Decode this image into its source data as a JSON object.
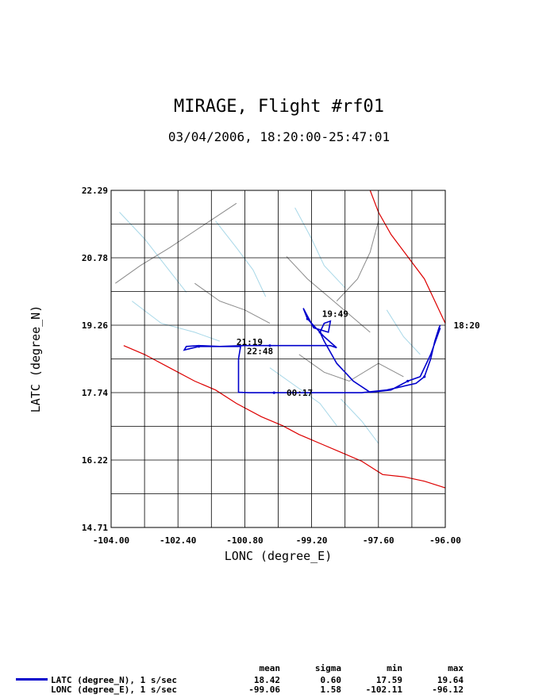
{
  "title": "MIRAGE, Flight #rf01",
  "subtitle": "03/04/2006, 18:20:00-25:47:01",
  "colors": {
    "track": "#0000cc",
    "coast": "#dd0000",
    "rivers": "#a8d8e8",
    "borders": "#8a8a8a",
    "grid": "#000000"
  },
  "chart_data": {
    "type": "line",
    "xlabel": "LONC (degree_E)",
    "ylabel": "LATC (degree_N)",
    "xlim": [
      -104.0,
      -96.0
    ],
    "ylim": [
      14.71,
      22.29
    ],
    "x_ticks": [
      "-104.00",
      "-102.40",
      "-100.80",
      "-99.20",
      "-97.60",
      "-96.00"
    ],
    "y_ticks": [
      "14.71",
      "16.22",
      "17.74",
      "19.26",
      "20.78",
      "22.29"
    ],
    "grid": true,
    "series": [
      {
        "name": "LATC (degree_N), 1 s/sec",
        "x": [
          -96.12,
          -96.35,
          -96.6,
          -96.9,
          -97.3,
          -97.8,
          -98.2,
          -98.6,
          -98.9,
          -99.0,
          -98.9,
          -98.75,
          -98.8,
          -99.15,
          -99.4,
          -99.3,
          -98.9,
          -98.6,
          -98.75,
          -99.1,
          -99.5,
          -100.2,
          -100.8,
          -101.4,
          -101.9,
          -102.2,
          -102.25,
          -101.9,
          -101.2,
          -100.9,
          -100.95,
          -100.95,
          -100.7,
          -100.1,
          -99.3,
          -98.6,
          -98.0,
          -97.4,
          -96.7,
          -96.5,
          -96.35,
          -96.25,
          -96.15,
          -96.12
        ],
        "y": [
          19.2,
          18.6,
          18.1,
          18.0,
          17.8,
          17.75,
          18.0,
          18.4,
          18.9,
          19.1,
          19.3,
          19.35,
          19.1,
          19.2,
          19.64,
          19.4,
          19.0,
          18.75,
          18.8,
          18.8,
          18.8,
          18.8,
          18.8,
          18.78,
          18.8,
          18.78,
          18.7,
          18.78,
          18.78,
          18.78,
          18.5,
          17.75,
          17.74,
          17.74,
          17.74,
          17.74,
          17.74,
          17.8,
          17.95,
          18.1,
          18.5,
          18.9,
          19.2,
          19.26
        ]
      },
      {
        "name": "LONC (degree_E), 1 s/sec"
      }
    ],
    "annotations": [
      {
        "text": "19:49",
        "x": -98.95,
        "y": 19.52
      },
      {
        "text": "21:19",
        "x": -101.0,
        "y": 18.88
      },
      {
        "text": "22:48",
        "x": -100.75,
        "y": 18.68
      },
      {
        "text": "00:17",
        "x": -99.8,
        "y": 17.74
      },
      {
        "text": "18:20",
        "x": -95.8,
        "y": 19.26
      }
    ],
    "stats": {
      "headers": [
        "mean",
        "sigma",
        "min",
        "max"
      ],
      "rows": [
        {
          "label": "LATC (degree_N), 1 s/sec",
          "mean": "18.42",
          "sigma": "0.60",
          "min": "17.59",
          "max": "19.64"
        },
        {
          "label": "LONC (degree_E), 1 s/sec",
          "mean": "-99.06",
          "sigma": "1.58",
          "min": "-102.11",
          "max": "-96.12"
        }
      ]
    }
  }
}
